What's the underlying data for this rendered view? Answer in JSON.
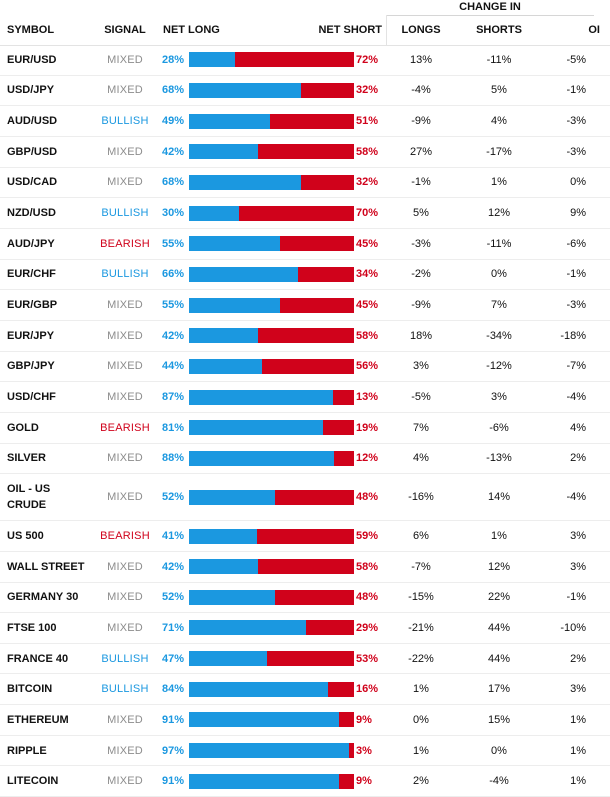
{
  "header": {
    "change_in": "CHANGE IN",
    "symbol": "SYMBOL",
    "signal": "SIGNAL",
    "net_long": "NET LONG",
    "net_short": "NET SHORT",
    "longs": "LONGS",
    "shorts": "SHORTS",
    "oi": "OI"
  },
  "colors": {
    "long": "#1b98e0",
    "short": "#d0021b",
    "mixed": "#8c8c8c"
  },
  "rows": [
    {
      "symbol": "EUR/USD",
      "signal": "MIXED",
      "net_long": "28%",
      "net_short": "72%",
      "long_value": 28,
      "longs": "13%",
      "shorts": "-11%",
      "oi": "-5%"
    },
    {
      "symbol": "USD/JPY",
      "signal": "MIXED",
      "net_long": "68%",
      "net_short": "32%",
      "long_value": 68,
      "longs": "-4%",
      "shorts": "5%",
      "oi": "-1%"
    },
    {
      "symbol": "AUD/USD",
      "signal": "BULLISH",
      "net_long": "49%",
      "net_short": "51%",
      "long_value": 49,
      "longs": "-9%",
      "shorts": "4%",
      "oi": "-3%"
    },
    {
      "symbol": "GBP/USD",
      "signal": "MIXED",
      "net_long": "42%",
      "net_short": "58%",
      "long_value": 42,
      "longs": "27%",
      "shorts": "-17%",
      "oi": "-3%"
    },
    {
      "symbol": "USD/CAD",
      "signal": "MIXED",
      "net_long": "68%",
      "net_short": "32%",
      "long_value": 68,
      "longs": "-1%",
      "shorts": "1%",
      "oi": "0%"
    },
    {
      "symbol": "NZD/USD",
      "signal": "BULLISH",
      "net_long": "30%",
      "net_short": "70%",
      "long_value": 30,
      "longs": "5%",
      "shorts": "12%",
      "oi": "9%"
    },
    {
      "symbol": "AUD/JPY",
      "signal": "BEARISH",
      "net_long": "55%",
      "net_short": "45%",
      "long_value": 55,
      "longs": "-3%",
      "shorts": "-11%",
      "oi": "-6%"
    },
    {
      "symbol": "EUR/CHF",
      "signal": "BULLISH",
      "net_long": "66%",
      "net_short": "34%",
      "long_value": 66,
      "longs": "-2%",
      "shorts": "0%",
      "oi": "-1%"
    },
    {
      "symbol": "EUR/GBP",
      "signal": "MIXED",
      "net_long": "55%",
      "net_short": "45%",
      "long_value": 55,
      "longs": "-9%",
      "shorts": "7%",
      "oi": "-3%"
    },
    {
      "symbol": "EUR/JPY",
      "signal": "MIXED",
      "net_long": "42%",
      "net_short": "58%",
      "long_value": 42,
      "longs": "18%",
      "shorts": "-34%",
      "oi": "-18%"
    },
    {
      "symbol": "GBP/JPY",
      "signal": "MIXED",
      "net_long": "44%",
      "net_short": "56%",
      "long_value": 44,
      "longs": "3%",
      "shorts": "-12%",
      "oi": "-7%"
    },
    {
      "symbol": "USD/CHF",
      "signal": "MIXED",
      "net_long": "87%",
      "net_short": "13%",
      "long_value": 87,
      "longs": "-5%",
      "shorts": "3%",
      "oi": "-4%"
    },
    {
      "symbol": "GOLD",
      "signal": "BEARISH",
      "net_long": "81%",
      "net_short": "19%",
      "long_value": 81,
      "longs": "7%",
      "shorts": "-6%",
      "oi": "4%"
    },
    {
      "symbol": "SILVER",
      "signal": "MIXED",
      "net_long": "88%",
      "net_short": "12%",
      "long_value": 88,
      "longs": "4%",
      "shorts": "-13%",
      "oi": "2%"
    },
    {
      "symbol": "OIL - US CRUDE",
      "signal": "MIXED",
      "net_long": "52%",
      "net_short": "48%",
      "long_value": 52,
      "longs": "-16%",
      "shorts": "14%",
      "oi": "-4%"
    },
    {
      "symbol": "US 500",
      "signal": "BEARISH",
      "net_long": "41%",
      "net_short": "59%",
      "long_value": 41,
      "longs": "6%",
      "shorts": "1%",
      "oi": "3%"
    },
    {
      "symbol": "WALL STREET",
      "signal": "MIXED",
      "net_long": "42%",
      "net_short": "58%",
      "long_value": 42,
      "longs": "-7%",
      "shorts": "12%",
      "oi": "3%"
    },
    {
      "symbol": "GERMANY 30",
      "signal": "MIXED",
      "net_long": "52%",
      "net_short": "48%",
      "long_value": 52,
      "longs": "-15%",
      "shorts": "22%",
      "oi": "-1%"
    },
    {
      "symbol": "FTSE 100",
      "signal": "MIXED",
      "net_long": "71%",
      "net_short": "29%",
      "long_value": 71,
      "longs": "-21%",
      "shorts": "44%",
      "oi": "-10%"
    },
    {
      "symbol": "FRANCE 40",
      "signal": "BULLISH",
      "net_long": "47%",
      "net_short": "53%",
      "long_value": 47,
      "longs": "-22%",
      "shorts": "44%",
      "oi": "2%"
    },
    {
      "symbol": "BITCOIN",
      "signal": "BULLISH",
      "net_long": "84%",
      "net_short": "16%",
      "long_value": 84,
      "longs": "1%",
      "shorts": "17%",
      "oi": "3%"
    },
    {
      "symbol": "ETHEREUM",
      "signal": "MIXED",
      "net_long": "91%",
      "net_short": "9%",
      "long_value": 91,
      "longs": "0%",
      "shorts": "15%",
      "oi": "1%"
    },
    {
      "symbol": "RIPPLE",
      "signal": "MIXED",
      "net_long": "97%",
      "net_short": "3%",
      "long_value": 97,
      "longs": "1%",
      "shorts": "0%",
      "oi": "1%"
    },
    {
      "symbol": "LITECOIN",
      "signal": "MIXED",
      "net_long": "91%",
      "net_short": "9%",
      "long_value": 91,
      "longs": "2%",
      "shorts": "-4%",
      "oi": "1%"
    }
  ]
}
